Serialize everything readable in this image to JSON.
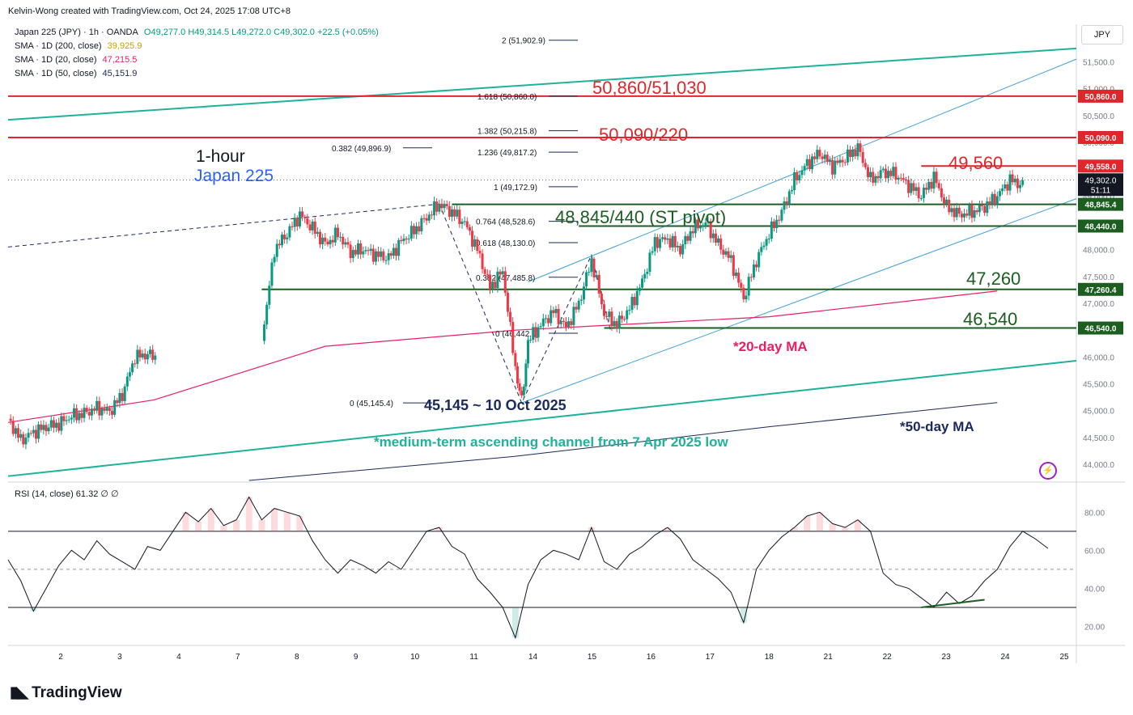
{
  "credit": "Kelvin-Wong created with TradingView.com, Oct 24, 2025 17:08 UTC+8",
  "legend": {
    "symbol": "Japan 225 (JPY) · 1h · OANDA",
    "ohlc": "O49,277.0 H49,314.5 L49,272.0 C49,302.0 +22.5 (+0.05%)",
    "sma200_label": "SMA · 1D (200, close)",
    "sma200_value": "39,925.9",
    "sma20_label": "SMA · 1D (20, close)",
    "sma20_value": "47,215.5",
    "sma50_label": "SMA · 1D (50, close)",
    "sma50_value": "45,151.9"
  },
  "currency": "JPY",
  "rsi_legend": "RSI (14, close) 61.32 ∅ ∅",
  "brand": "TradingView",
  "colors": {
    "up": "#089981",
    "down": "#f23645",
    "resistance": "#e0262a",
    "support": "#1b5e20",
    "channel": "#1fb29a",
    "inner_channel": "#3ea0d8",
    "ma20": "#e91e63",
    "ma50": "#1a2a5a",
    "label_title": "#131722",
    "label_japan": "#2962ff",
    "rsi": "#131722"
  },
  "chart_data": {
    "type": "candlestick",
    "timeframe": "1h",
    "ylim": [
      43700,
      52200
    ],
    "y_ticks": [
      44000,
      44500,
      45000,
      45500,
      46000,
      46500,
      47000,
      47500,
      48000,
      48500,
      49000,
      49500,
      50000,
      50500,
      51000,
      51500
    ],
    "y_tick_labels": [
      "44,000.0",
      "44,500.0",
      "45,000.0",
      "45,500.0",
      "46,000.0",
      "46,500.0",
      "47,000.0",
      "47,500.0",
      "48,000.0",
      "48,500.0",
      "49,000.0",
      "49,500.0",
      "50,000.0",
      "50,500.0",
      "51,000.0",
      "51,500.0"
    ],
    "x_tick_labels": [
      "2",
      "3",
      "4",
      "7",
      "8",
      "9",
      "10",
      "11",
      "14",
      "15",
      "16",
      "17",
      "18",
      "21",
      "22",
      "23",
      "24",
      "25"
    ],
    "close_path": [
      [
        0,
        44850
      ],
      [
        1,
        44450
      ],
      [
        2,
        44600
      ],
      [
        3,
        44700
      ],
      [
        4,
        44750
      ],
      [
        5,
        44900
      ],
      [
        6,
        44950
      ],
      [
        7,
        45050
      ],
      [
        8,
        44980
      ],
      [
        9,
        45300
      ],
      [
        10,
        46000
      ],
      [
        11,
        46050
      ],
      [
        11.6,
        46000
      ],
      [
        20,
        46300
      ],
      [
        21,
        48000
      ],
      [
        22,
        48300
      ],
      [
        23,
        48650
      ],
      [
        24,
        48400
      ],
      [
        25,
        48100
      ],
      [
        26,
        48300
      ],
      [
        27,
        47950
      ],
      [
        28,
        48000
      ],
      [
        29,
        47900
      ],
      [
        30,
        47850
      ],
      [
        31,
        48150
      ],
      [
        32,
        48350
      ],
      [
        33,
        48600
      ],
      [
        34,
        48850
      ],
      [
        35,
        48700
      ],
      [
        36,
        48500
      ],
      [
        37,
        48000
      ],
      [
        38,
        47300
      ],
      [
        39,
        47600
      ],
      [
        40,
        45800
      ],
      [
        40.5,
        45145
      ],
      [
        41,
        46300
      ],
      [
        42,
        46600
      ],
      [
        43,
        46850
      ],
      [
        44,
        46550
      ],
      [
        45,
        47000
      ],
      [
        46,
        47800
      ],
      [
        47,
        46800
      ],
      [
        48,
        46600
      ],
      [
        49,
        46900
      ],
      [
        50,
        47400
      ],
      [
        51,
        48150
      ],
      [
        52,
        48200
      ],
      [
        53,
        48000
      ],
      [
        54,
        48400
      ],
      [
        55,
        48500
      ],
      [
        56,
        48100
      ],
      [
        57,
        47800
      ],
      [
        58,
        47100
      ],
      [
        59,
        47800
      ],
      [
        60,
        48300
      ],
      [
        61,
        48700
      ],
      [
        62,
        49300
      ],
      [
        63,
        49600
      ],
      [
        64,
        49800
      ],
      [
        65,
        49550
      ],
      [
        66,
        49700
      ],
      [
        67,
        49900
      ],
      [
        68,
        49300
      ],
      [
        69,
        49450
      ],
      [
        70,
        49400
      ],
      [
        71,
        49200
      ],
      [
        72,
        49000
      ],
      [
        73,
        49350
      ],
      [
        74,
        48800
      ],
      [
        75,
        48650
      ],
      [
        76,
        48700
      ],
      [
        77,
        48800
      ],
      [
        78,
        49000
      ],
      [
        79,
        49300
      ],
      [
        80,
        49200
      ]
    ],
    "rsi": {
      "ylim": [
        10,
        95
      ],
      "ticks": [
        20,
        40,
        60,
        80
      ],
      "tick_labels": [
        "20.00",
        "40.00",
        "60.00",
        "80.00"
      ],
      "levels": [
        70,
        50,
        30
      ],
      "values": [
        55,
        44,
        28,
        40,
        52,
        60,
        55,
        65,
        58,
        54,
        50,
        62,
        60,
        70,
        80,
        75,
        82,
        73,
        76,
        88,
        76,
        82,
        80,
        78,
        65,
        55,
        48,
        55,
        52,
        48,
        54,
        50,
        60,
        70,
        72,
        62,
        58,
        45,
        38,
        30,
        14,
        42,
        55,
        60,
        58,
        55,
        72,
        54,
        50,
        58,
        62,
        68,
        72,
        66,
        55,
        50,
        45,
        38,
        22,
        50,
        60,
        67,
        72,
        78,
        80,
        74,
        72,
        76,
        70,
        48,
        42,
        40,
        35,
        30,
        38,
        32,
        36,
        44,
        50,
        62,
        70,
        66,
        61
      ]
    },
    "levels": [
      {
        "price": 50860,
        "type": "resistance",
        "label": "50,860/51,030",
        "axis_label": "50,860.0"
      },
      {
        "price": 50090,
        "type": "resistance",
        "label": "50,090/220",
        "axis_label": "50,090.0"
      },
      {
        "price": 49558,
        "type": "resistance",
        "label": "49,560",
        "axis_label": "49,558.0"
      },
      {
        "price": 48845,
        "type": "support",
        "label": "48,845/440 (ST pivot)",
        "axis_label": "48,845.4"
      },
      {
        "price": 48440,
        "type": "support",
        "label": "",
        "axis_label": "48,440.0"
      },
      {
        "price": 47260,
        "type": "support",
        "label": "47,260",
        "axis_label": "47,260.4"
      },
      {
        "price": 46540,
        "type": "support",
        "label": "46,540",
        "axis_label": "46,540.0"
      }
    ],
    "current_price": {
      "label": "49,302.0",
      "countdown": "51:11",
      "value": 49302
    },
    "fib_levels": [
      {
        "label": "2 (51,902.9)",
        "price": 51903
      },
      {
        "label": "1.618 (50,860.0)",
        "price": 50860
      },
      {
        "label": "1.382 (50,215.8)",
        "price": 50216
      },
      {
        "label": "1.236 (49,817.2)",
        "price": 49817
      },
      {
        "label": "1 (49,172.9)",
        "price": 49173
      },
      {
        "label": "0.764 (48,528.6)",
        "price": 48529
      },
      {
        "label": "0.618 (48,130.0)",
        "price": 48130
      },
      {
        "label": "0.382 (47,485.8)",
        "price": 47486
      },
      {
        "label": "0 (46,442.9)",
        "price": 46443
      },
      {
        "label": "0 (45,145.4)",
        "price": 45145
      },
      {
        "label": "0.382 (49,896.9)",
        "price": 49897
      }
    ],
    "annotations": {
      "timeframe_title": "1-hour",
      "instrument": "Japan 225",
      "low_label": "45,145 ~ 10 Oct 2025",
      "ma20_label": "*20-day MA",
      "ma50_label": "*50-day MA",
      "channel_label": "*medium-term ascending channel from 7 Apr 2025 low"
    }
  }
}
